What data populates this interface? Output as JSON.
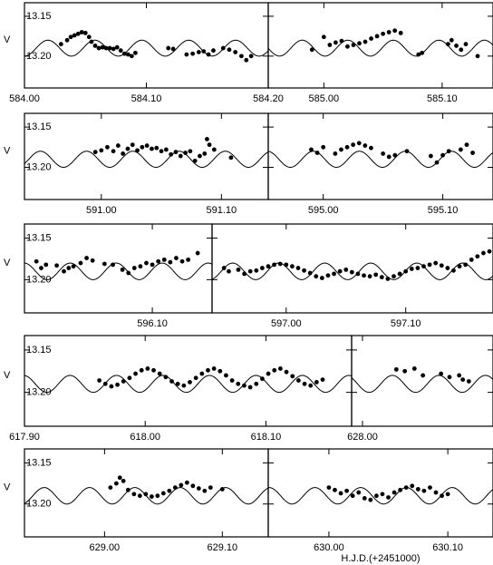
{
  "chart_data": [
    {
      "type": "scatter",
      "ylabel": "V",
      "ytick_labels": true,
      "xlim": [
        584.0,
        584.2
      ],
      "ylim": [
        13.133,
        13.24
      ],
      "y_inverted": true,
      "xticks": [
        {
          "value": 584.0,
          "label": "584.00"
        },
        {
          "value": 584.1,
          "label": "584.10"
        },
        {
          "value": 584.2,
          "label": "584.20"
        }
      ],
      "yticks": [
        13.15,
        {
          "value": 13.2,
          "label": "13.20"
        }
      ],
      "model": {
        "mean": 13.19,
        "amplitude": 0.01,
        "period": 0.0385,
        "epoch": 584.0
      },
      "x": [
        584.03,
        584.035,
        584.038,
        584.041,
        584.044,
        584.047,
        584.05,
        584.053,
        584.055,
        584.058,
        584.061,
        584.064,
        584.067,
        584.07,
        584.073,
        584.076,
        584.079,
        584.082,
        584.085,
        584.088,
        584.091,
        584.118,
        584.122,
        584.133,
        584.138,
        584.143,
        584.147,
        584.151,
        584.155,
        584.163,
        584.168,
        584.173,
        584.178,
        584.182,
        584.186
      ],
      "values": [
        13.185,
        13.18,
        13.176,
        13.174,
        13.172,
        13.17,
        13.171,
        13.176,
        13.182,
        13.187,
        13.19,
        13.189,
        13.19,
        13.19,
        13.191,
        13.189,
        13.193,
        13.197,
        13.198,
        13.2,
        13.196,
        13.19,
        13.191,
        13.198,
        13.197,
        13.195,
        13.194,
        13.198,
        13.193,
        13.19,
        13.192,
        13.195,
        13.2,
        13.205,
        13.2
      ]
    },
    {
      "type": "scatter",
      "ytick_labels": false,
      "xlim": [
        584.953,
        585.143
      ],
      "ylim": [
        13.133,
        13.24
      ],
      "y_inverted": true,
      "xticks": [
        {
          "value": 585.0,
          "label": "585.00"
        },
        {
          "value": 585.1,
          "label": "585.10"
        }
      ],
      "yticks": [
        13.15,
        13.2
      ],
      "model": {
        "mean": 13.19,
        "amplitude": 0.01,
        "period": 0.0385,
        "epoch": 584.0
      },
      "x": [
        584.99,
        585.0,
        585.005,
        585.01,
        585.015,
        585.02,
        585.025,
        585.03,
        585.035,
        585.04,
        585.045,
        585.05,
        585.055,
        585.06,
        585.065,
        585.08,
        585.083,
        585.105,
        585.108,
        585.112,
        585.116,
        585.12,
        585.13
      ],
      "values": [
        13.192,
        13.176,
        13.186,
        13.183,
        13.181,
        13.188,
        13.186,
        13.184,
        13.182,
        13.178,
        13.175,
        13.172,
        13.17,
        13.168,
        13.171,
        13.198,
        13.196,
        13.185,
        13.18,
        13.187,
        13.192,
        13.185,
        13.2
      ]
    },
    {
      "type": "scatter",
      "ylabel": "V",
      "ytick_labels": true,
      "xlim": [
        590.936,
        591.139
      ],
      "ylim": [
        13.133,
        13.24
      ],
      "y_inverted": true,
      "xticks": [
        {
          "value": 591.0,
          "label": "591.00"
        },
        {
          "value": 591.1,
          "label": "591.10"
        }
      ],
      "yticks": [
        13.15,
        {
          "value": 13.2,
          "label": "13.20"
        }
      ],
      "model": {
        "mean": 13.19,
        "amplitude": 0.01,
        "period": 0.0385,
        "epoch": 584.0
      },
      "x": [
        590.995,
        591.0,
        591.005,
        591.01,
        591.014,
        591.018,
        591.022,
        591.026,
        591.03,
        591.034,
        591.038,
        591.042,
        591.046,
        591.05,
        591.054,
        591.058,
        591.062,
        591.066,
        591.07,
        591.074,
        591.078,
        591.082,
        591.086,
        591.088,
        591.09,
        591.094,
        591.108
      ],
      "values": [
        13.181,
        13.179,
        13.175,
        13.18,
        13.173,
        13.183,
        13.177,
        13.172,
        13.179,
        13.175,
        13.173,
        13.177,
        13.176,
        13.18,
        13.178,
        13.184,
        13.181,
        13.186,
        13.182,
        13.18,
        13.192,
        13.186,
        13.183,
        13.165,
        13.172,
        13.178,
        13.188
      ]
    },
    {
      "type": "scatter",
      "ytick_labels": false,
      "xlim": [
        594.954,
        595.142
      ],
      "ylim": [
        13.133,
        13.24
      ],
      "y_inverted": true,
      "xticks": [
        {
          "value": 595.0,
          "label": "595.00"
        },
        {
          "value": 595.1,
          "label": "595.10"
        }
      ],
      "yticks": [
        13.15,
        13.2
      ],
      "model": {
        "mean": 13.19,
        "amplitude": 0.01,
        "period": 0.0385,
        "epoch": 584.0
      },
      "x": [
        594.99,
        594.995,
        595.0,
        595.01,
        595.015,
        595.02,
        595.025,
        595.03,
        595.035,
        595.04,
        595.05,
        595.055,
        595.06,
        595.07,
        595.09,
        595.095,
        595.1,
        595.105,
        595.115,
        595.12,
        595.125
      ],
      "values": [
        13.178,
        13.182,
        13.175,
        13.183,
        13.178,
        13.175,
        13.172,
        13.17,
        13.173,
        13.176,
        13.183,
        13.187,
        13.185,
        13.18,
        13.186,
        13.194,
        13.185,
        13.18,
        13.178,
        13.172,
        13.182
      ]
    },
    {
      "type": "scatter",
      "ylabel": "V",
      "ytick_labels": true,
      "xlim": [
        595.993,
        596.15
      ],
      "ylim": [
        13.133,
        13.24
      ],
      "y_inverted": true,
      "xticks": [
        {
          "value": 596.1,
          "label": "596.10"
        }
      ],
      "yticks": [
        13.15,
        {
          "value": 13.2,
          "label": "13.20"
        }
      ],
      "model": {
        "mean": 13.19,
        "amplitude": 0.01,
        "period": 0.0385,
        "epoch": 584.0
      },
      "x": [
        596.003,
        596.007,
        596.011,
        596.02,
        596.026,
        596.03,
        596.034,
        596.04,
        596.045,
        596.05,
        596.06,
        596.067,
        596.075,
        596.08,
        596.085,
        596.09,
        596.095,
        596.1,
        596.105,
        596.11,
        596.115,
        596.12,
        596.125,
        596.13,
        596.138
      ],
      "values": [
        13.178,
        13.186,
        13.182,
        13.183,
        13.19,
        13.186,
        13.184,
        13.18,
        13.174,
        13.177,
        13.181,
        13.182,
        13.188,
        13.192,
        13.186,
        13.184,
        13.18,
        13.182,
        13.178,
        13.176,
        13.179,
        13.174,
        13.178,
        13.176,
        13.168
      ]
    },
    {
      "type": "scatter",
      "ytick_labels": false,
      "xlim": [
        596.938,
        597.173
      ],
      "ylim": [
        13.133,
        13.24
      ],
      "y_inverted": true,
      "xticks": [
        {
          "value": 597.0,
          "label": "597.00"
        },
        {
          "value": 597.1,
          "label": "597.10"
        }
      ],
      "yticks": [
        13.15,
        13.2
      ],
      "model": {
        "mean": 13.19,
        "amplitude": 0.01,
        "period": 0.0385,
        "epoch": 584.0
      },
      "x": [
        596.948,
        596.952,
        596.96,
        596.965,
        596.97,
        596.975,
        596.98,
        596.985,
        596.99,
        596.995,
        597.0,
        597.005,
        597.01,
        597.015,
        597.02,
        597.025,
        597.03,
        597.035,
        597.04,
        597.045,
        597.05,
        597.055,
        597.06,
        597.065,
        597.07,
        597.075,
        597.08,
        597.085,
        597.09,
        597.095,
        597.1,
        597.105,
        597.11,
        597.115,
        597.12,
        597.125,
        597.13,
        597.135,
        597.14,
        597.145,
        597.15,
        597.155,
        597.16,
        597.165,
        597.17
      ],
      "values": [
        13.186,
        13.19,
        13.188,
        13.193,
        13.19,
        13.189,
        13.186,
        13.184,
        13.182,
        13.181,
        13.182,
        13.184,
        13.186,
        13.189,
        13.192,
        13.196,
        13.198,
        13.195,
        13.193,
        13.19,
        13.188,
        13.191,
        13.193,
        13.195,
        13.196,
        13.194,
        13.197,
        13.199,
        13.196,
        13.193,
        13.19,
        13.187,
        13.186,
        13.184,
        13.182,
        13.18,
        13.183,
        13.186,
        13.189,
        13.184,
        13.182,
        13.176,
        13.172,
        13.168,
        13.166
      ]
    },
    {
      "type": "scatter",
      "ylabel": "V",
      "ytick_labels": true,
      "xlim": [
        617.9,
        618.171
      ],
      "ylim": [
        13.133,
        13.24
      ],
      "y_inverted": true,
      "xticks": [
        {
          "value": 617.9,
          "label": "617.90"
        },
        {
          "value": 618.0,
          "label": "618.00"
        },
        {
          "value": 618.1,
          "label": "618.10"
        }
      ],
      "yticks": [
        13.15,
        {
          "value": 13.2,
          "label": "13.20"
        }
      ],
      "model": {
        "mean": 13.19,
        "amplitude": 0.01,
        "period": 0.0385,
        "epoch": 584.0
      },
      "x": [
        617.962,
        617.967,
        617.972,
        617.977,
        617.982,
        617.987,
        617.992,
        617.997,
        618.002,
        618.007,
        618.012,
        618.017,
        618.022,
        618.027,
        618.032,
        618.037,
        618.042,
        618.047,
        618.052,
        618.057,
        618.062,
        618.067,
        618.072,
        618.077,
        618.082,
        618.087,
        618.092,
        618.097,
        618.102,
        618.107,
        618.112,
        618.117,
        618.122,
        618.127,
        618.132,
        618.137,
        618.142,
        618.147
      ],
      "values": [
        13.186,
        13.19,
        13.193,
        13.191,
        13.187,
        13.183,
        13.178,
        13.174,
        13.172,
        13.174,
        13.178,
        13.182,
        13.187,
        13.19,
        13.192,
        13.188,
        13.183,
        13.178,
        13.174,
        13.172,
        13.175,
        13.18,
        13.186,
        13.19,
        13.192,
        13.194,
        13.19,
        13.184,
        13.178,
        13.174,
        13.172,
        13.176,
        13.181,
        13.186,
        13.19,
        13.192,
        13.188,
        13.185
      ]
    },
    {
      "type": "scatter",
      "ytick_labels": false,
      "xlim": [
        627.991,
        628.108
      ],
      "ylim": [
        13.133,
        13.24
      ],
      "y_inverted": true,
      "xticks": [
        {
          "value": 628.0,
          "label": "628.00"
        }
      ],
      "yticks": [
        13.15,
        13.2
      ],
      "model": {
        "mean": 13.19,
        "amplitude": 0.01,
        "period": 0.0385,
        "epoch": 584.0
      },
      "x": [
        628.028,
        628.035,
        628.043,
        628.05,
        628.065,
        628.072,
        628.08,
        628.083,
        628.088
      ],
      "values": [
        13.173,
        13.175,
        13.172,
        13.18,
        13.178,
        13.182,
        13.18,
        13.185,
        13.187
      ]
    },
    {
      "type": "scatter",
      "ylabel": "V",
      "ytick_labels": true,
      "xlim": [
        628.932,
        629.139
      ],
      "ylim": [
        13.133,
        13.24
      ],
      "y_inverted": true,
      "xticks": [
        {
          "value": 629.0,
          "label": "629.00"
        },
        {
          "value": 629.1,
          "label": "629.10"
        }
      ],
      "yticks": [
        13.15,
        {
          "value": 13.2,
          "label": "13.20"
        }
      ],
      "model": {
        "mean": 13.19,
        "amplitude": 0.01,
        "period": 0.0385,
        "epoch": 584.0
      },
      "x": [
        629.005,
        629.01,
        629.013,
        629.016,
        629.02,
        629.025,
        629.03,
        629.035,
        629.04,
        629.045,
        629.05,
        629.055,
        629.06,
        629.065,
        629.07,
        629.075,
        629.08,
        629.085,
        629.09,
        629.1
      ],
      "values": [
        13.18,
        13.175,
        13.168,
        13.172,
        13.183,
        13.188,
        13.19,
        13.188,
        13.191,
        13.19,
        13.187,
        13.184,
        13.18,
        13.177,
        13.174,
        13.178,
        13.181,
        13.184,
        13.18,
        13.182
      ]
    },
    {
      "type": "scatter",
      "ytick_labels": false,
      "xlabel": "H.J.D.(+2451000)",
      "xlim": [
        629.949,
        630.138
      ],
      "ylim": [
        13.133,
        13.24
      ],
      "y_inverted": true,
      "xticks": [
        {
          "value": 630.0,
          "label": "630.00"
        },
        {
          "value": 630.1,
          "label": "630.10"
        }
      ],
      "yticks": [
        13.15,
        13.2
      ],
      "model": {
        "mean": 13.19,
        "amplitude": 0.01,
        "period": 0.0385,
        "epoch": 584.0
      },
      "x": [
        630.0,
        630.005,
        630.01,
        630.015,
        630.02,
        630.025,
        630.03,
        630.035,
        630.04,
        630.045,
        630.05,
        630.055,
        630.06,
        630.065,
        630.07,
        630.075,
        630.08,
        630.085,
        630.09,
        630.095,
        630.1
      ],
      "values": [
        13.18,
        13.183,
        13.187,
        13.184,
        13.19,
        13.186,
        13.193,
        13.195,
        13.19,
        13.188,
        13.192,
        13.186,
        13.183,
        13.18,
        13.178,
        13.182,
        13.184,
        13.18,
        13.186,
        13.19,
        13.188
      ]
    }
  ]
}
